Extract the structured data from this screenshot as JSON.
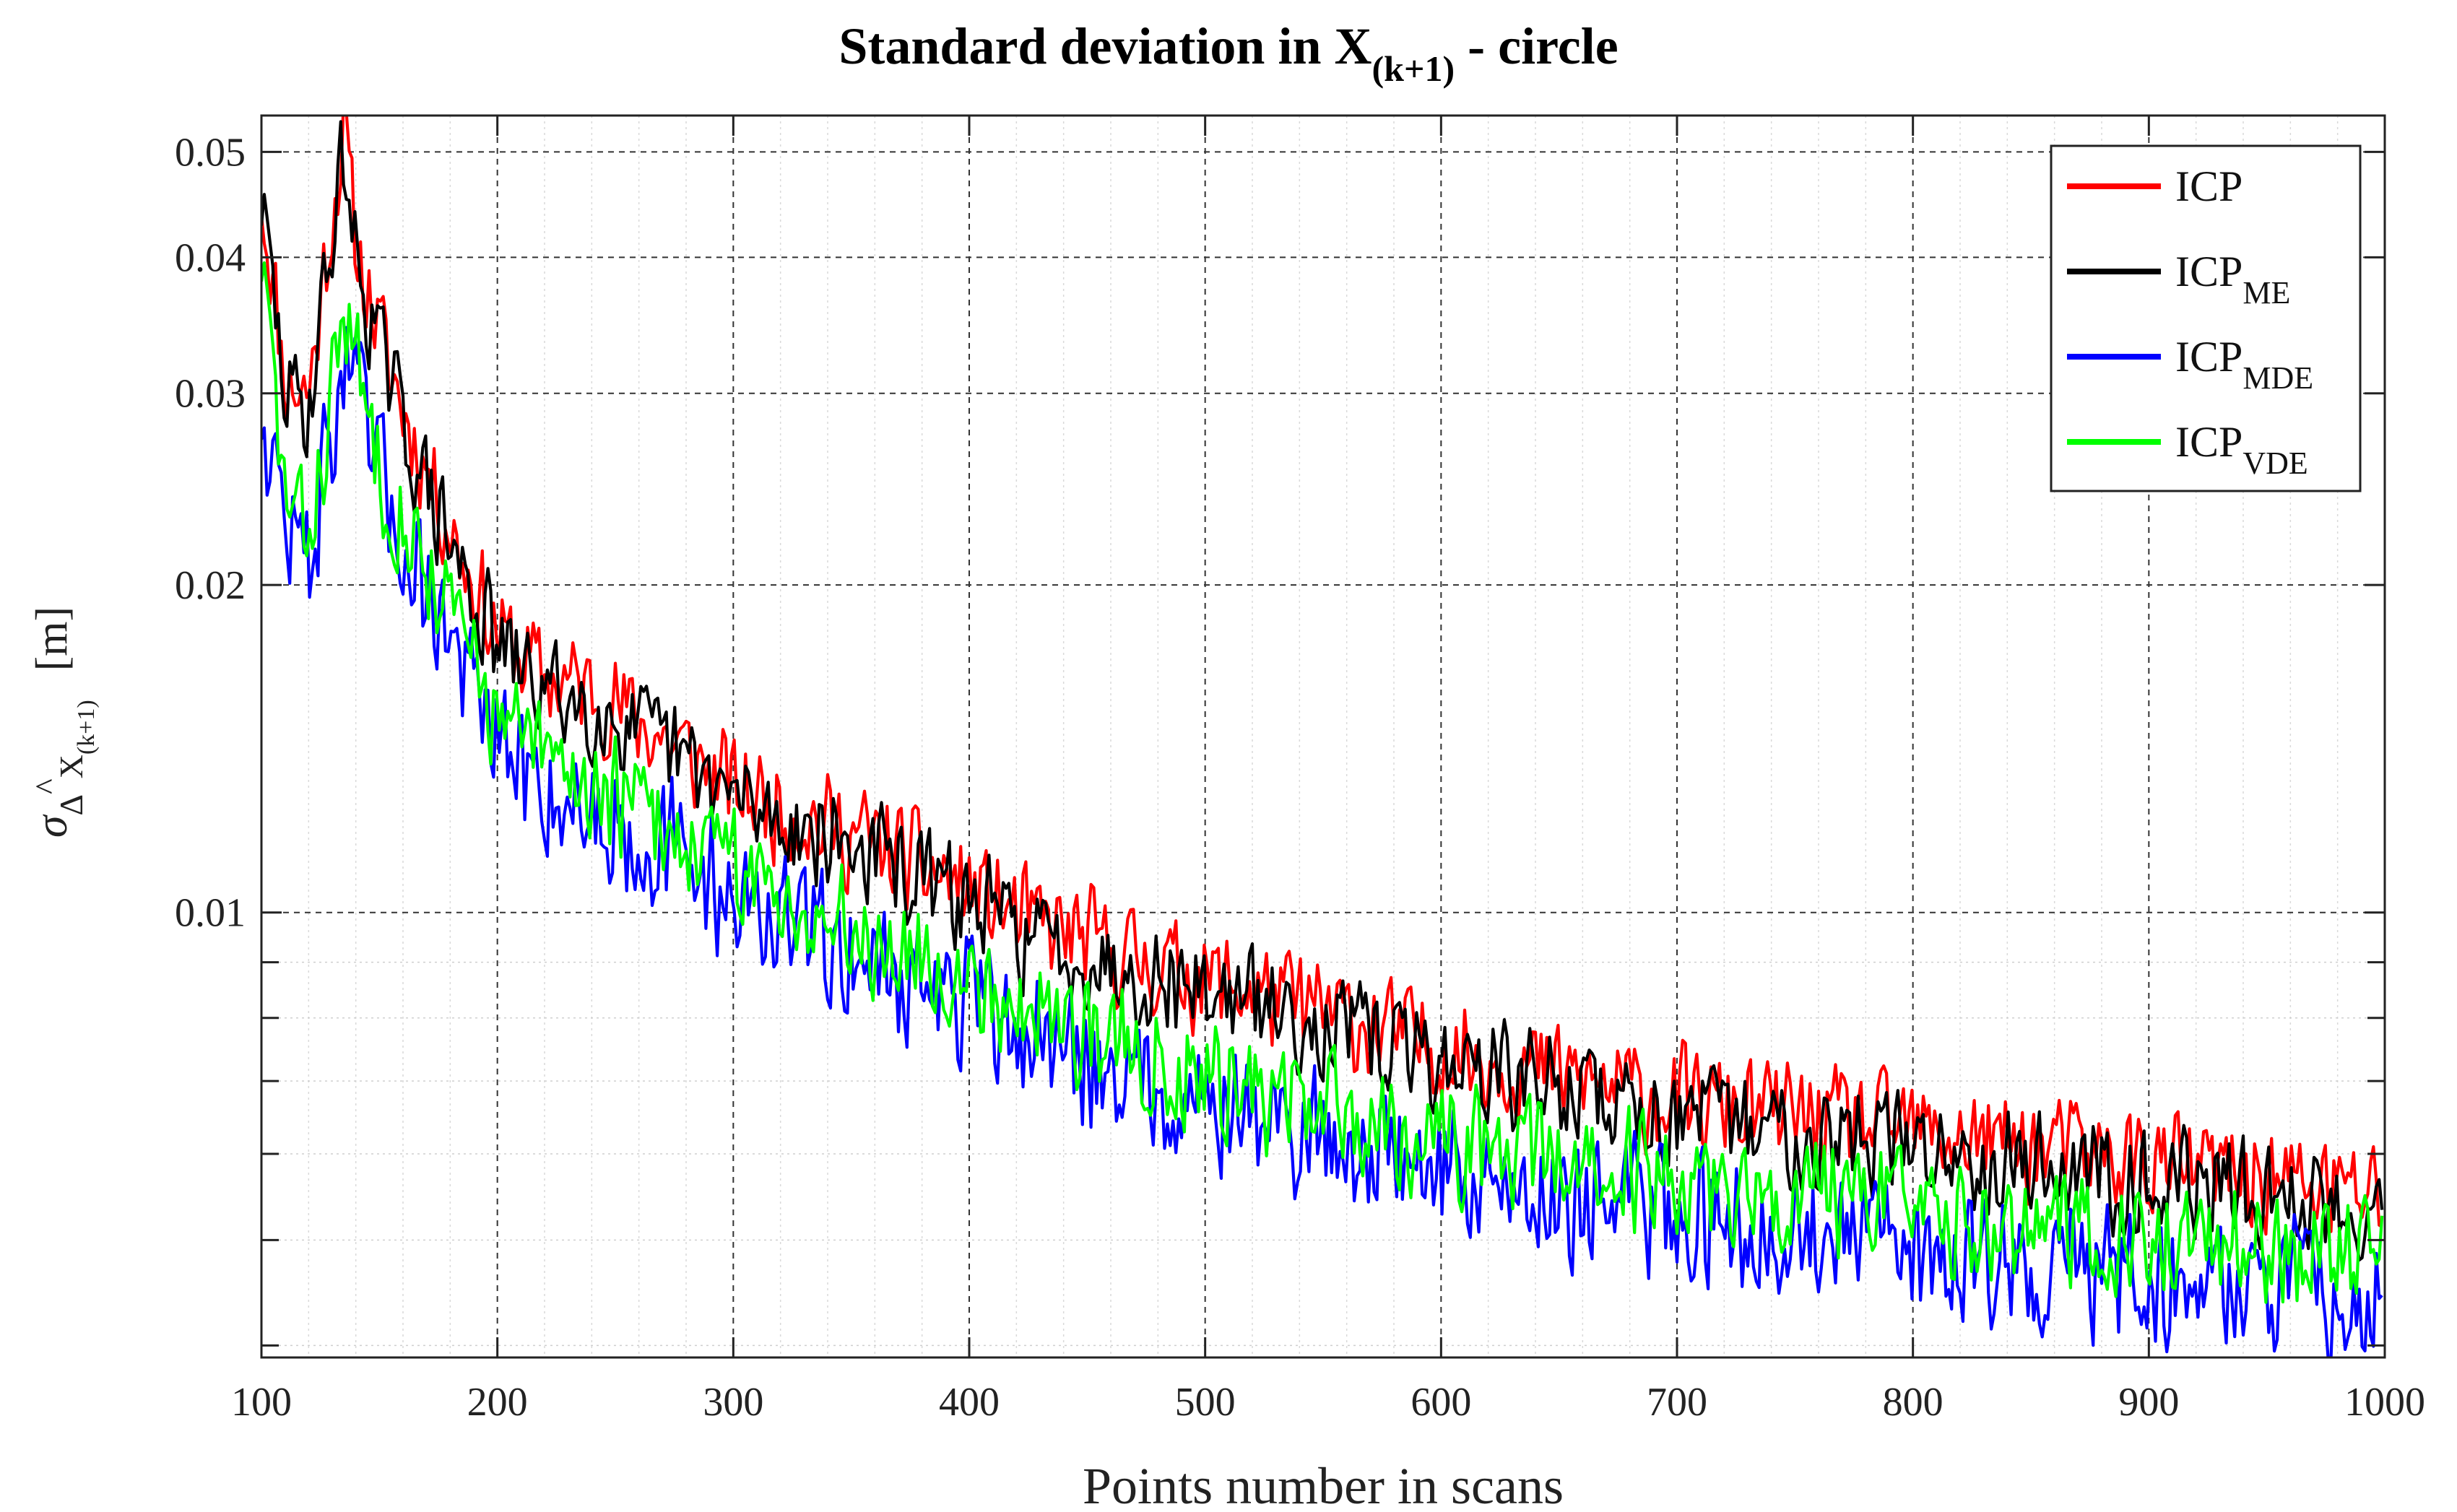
{
  "chart_data": {
    "type": "line",
    "title": "Standard deviation in X",
    "title_subscript": "(k+1)",
    "title_suffix": " - circle",
    "xlabel": "Points number in scans",
    "ylabel_sigma": "σ",
    "ylabel_delta": "Δ",
    "ylabel_hat": "^",
    "ylabel_var": "X",
    "ylabel_subscript": "(k+1)",
    "ylabel_unit": "[m]",
    "xlim": [
      100,
      1000
    ],
    "ylim": [
      0.0039,
      0.054
    ],
    "yscale": "log",
    "grid": true,
    "minor_grid": true,
    "legend_position": "top-right",
    "x_ticks": [
      100,
      200,
      300,
      400,
      500,
      600,
      700,
      800,
      900,
      1000
    ],
    "x_tick_labels": [
      "100",
      "200",
      "300",
      "400",
      "500",
      "600",
      "700",
      "800",
      "900",
      "1000"
    ],
    "y_ticks": [
      0.01,
      0.02,
      0.03,
      0.04,
      0.05
    ],
    "y_tick_labels": [
      "0.01",
      "0.02",
      "0.03",
      "0.04",
      "0.05"
    ],
    "y_minor_ticks": [
      0.004,
      0.005,
      0.006,
      0.007,
      0.008,
      0.009
    ],
    "x": [
      100,
      110,
      120,
      130,
      135,
      140,
      150,
      160,
      175,
      190,
      200,
      220,
      240,
      260,
      280,
      300,
      320,
      340,
      360,
      380,
      400,
      425,
      450,
      475,
      500,
      525,
      550,
      575,
      600,
      625,
      650,
      675,
      700,
      725,
      750,
      775,
      800,
      825,
      850,
      875,
      900,
      925,
      950,
      975,
      1000
    ],
    "series": [
      {
        "name": "ICP",
        "subscript": "",
        "color": "#ff0000",
        "values": [
          0.046,
          0.031,
          0.03,
          0.044,
          0.052,
          0.041,
          0.034,
          0.029,
          0.024,
          0.02,
          0.018,
          0.0165,
          0.016,
          0.015,
          0.014,
          0.013,
          0.0125,
          0.012,
          0.0116,
          0.011,
          0.0105,
          0.0098,
          0.0094,
          0.009,
          0.0087,
          0.0084,
          0.0081,
          0.0078,
          0.0075,
          0.0073,
          0.0071,
          0.0069,
          0.0067,
          0.0066,
          0.0065,
          0.0064,
          0.0063,
          0.0062,
          0.0061,
          0.006,
          0.0059,
          0.0058,
          0.0057,
          0.0056,
          0.0055
        ]
      },
      {
        "name": "ICP",
        "subscript": "ME",
        "color": "#000000",
        "values": [
          0.045,
          0.03,
          0.029,
          0.042,
          0.05,
          0.04,
          0.033,
          0.028,
          0.023,
          0.0195,
          0.0175,
          0.016,
          0.0155,
          0.0146,
          0.0137,
          0.0127,
          0.0122,
          0.0117,
          0.0113,
          0.0107,
          0.0102,
          0.0095,
          0.0091,
          0.0088,
          0.0085,
          0.0082,
          0.0079,
          0.0076,
          0.0073,
          0.0071,
          0.0069,
          0.0067,
          0.0065,
          0.0064,
          0.0063,
          0.0062,
          0.0061,
          0.006,
          0.0059,
          0.0058,
          0.0057,
          0.0056,
          0.0055,
          0.0054,
          0.0053
        ]
      },
      {
        "name": "ICP",
        "subscript": "MDE",
        "color": "#0000ff",
        "values": [
          0.029,
          0.023,
          0.021,
          0.028,
          0.032,
          0.03,
          0.025,
          0.022,
          0.019,
          0.016,
          0.014,
          0.013,
          0.0124,
          0.0118,
          0.0111,
          0.0104,
          0.0098,
          0.0094,
          0.009,
          0.0086,
          0.0082,
          0.0077,
          0.0073,
          0.007,
          0.0067,
          0.0064,
          0.0062,
          0.006,
          0.0058,
          0.0056,
          0.0055,
          0.0054,
          0.0053,
          0.0052,
          0.0051,
          0.005,
          0.0049,
          0.0048,
          0.0047,
          0.0047,
          0.0046,
          0.0046,
          0.0045,
          0.0045,
          0.0044
        ]
      },
      {
        "name": "ICP",
        "subscript": "VDE",
        "color": "#00ff00",
        "values": [
          0.04,
          0.024,
          0.022,
          0.03,
          0.036,
          0.032,
          0.026,
          0.023,
          0.02,
          0.017,
          0.015,
          0.0138,
          0.0131,
          0.0124,
          0.0117,
          0.011,
          0.0104,
          0.0099,
          0.0095,
          0.0091,
          0.0087,
          0.0082,
          0.0078,
          0.0074,
          0.0071,
          0.0068,
          0.0066,
          0.0064,
          0.0062,
          0.006,
          0.0059,
          0.0058,
          0.0057,
          0.0056,
          0.0055,
          0.0054,
          0.0053,
          0.0052,
          0.0051,
          0.0051,
          0.005,
          0.005,
          0.0049,
          0.0049,
          0.0048
        ]
      }
    ]
  }
}
